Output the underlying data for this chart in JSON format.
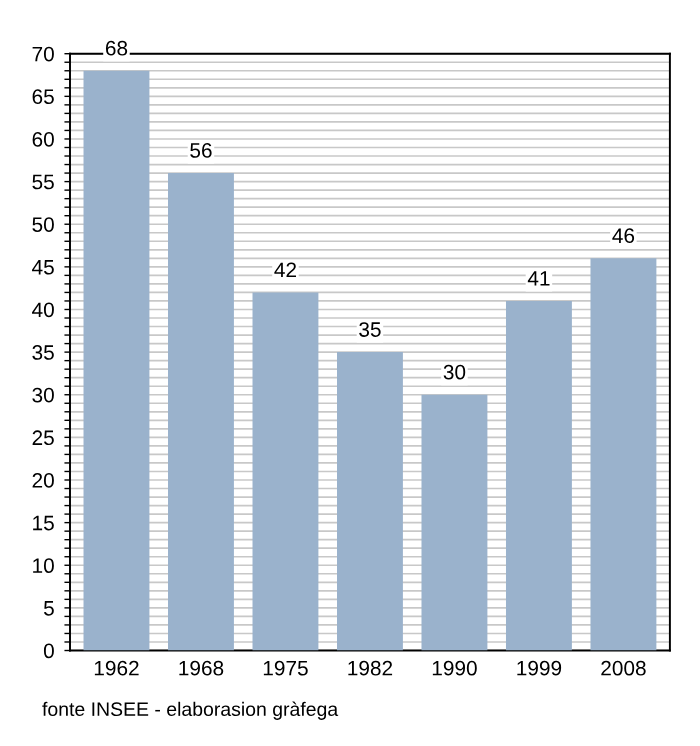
{
  "chart_data": {
    "type": "bar",
    "categories": [
      "1962",
      "1968",
      "1975",
      "1982",
      "1990",
      "1999",
      "2008"
    ],
    "values": [
      68,
      56,
      42,
      35,
      30,
      41,
      46
    ],
    "color": "#9ab2cc",
    "data_labels": true,
    "grid": "y",
    "ylim": [
      0,
      70
    ],
    "yticks": [
      0,
      {
        "value": 1,
        "label": null
      },
      {
        "value": 2,
        "label": null
      },
      {
        "value": 3,
        "label": null
      },
      {
        "value": 4,
        "label": null
      },
      5,
      {
        "value": 6,
        "label": null
      },
      {
        "value": 7,
        "label": null
      },
      {
        "value": 8,
        "label": null
      },
      {
        "value": 9,
        "label": null
      },
      10,
      {
        "value": 11,
        "label": null
      },
      {
        "value": 12,
        "label": null
      },
      {
        "value": 13,
        "label": null
      },
      {
        "value": 14,
        "label": null
      },
      15,
      {
        "value": 16,
        "label": null
      },
      {
        "value": 17,
        "label": null
      },
      {
        "value": 18,
        "label": null
      },
      {
        "value": 19,
        "label": null
      },
      20,
      {
        "value": 21,
        "label": null
      },
      {
        "value": 22,
        "label": null
      },
      {
        "value": 23,
        "label": null
      },
      {
        "value": 24,
        "label": null
      },
      25,
      {
        "value": 26,
        "label": null
      },
      {
        "value": 27,
        "label": null
      },
      {
        "value": 28,
        "label": null
      },
      {
        "value": 29,
        "label": null
      },
      30,
      {
        "value": 31,
        "label": null
      },
      {
        "value": 32,
        "label": null
      },
      {
        "value": 33,
        "label": null
      },
      {
        "value": 34,
        "label": null
      },
      35,
      {
        "value": 36,
        "label": null
      },
      {
        "value": 37,
        "label": null
      },
      {
        "value": 38,
        "label": null
      },
      {
        "value": 39,
        "label": null
      },
      40,
      {
        "value": 41,
        "label": null
      },
      {
        "value": 42,
        "label": null
      },
      {
        "value": 43,
        "label": null
      },
      {
        "value": 44,
        "label": null
      },
      45,
      {
        "value": 46,
        "label": null
      },
      {
        "value": 47,
        "label": null
      },
      {
        "value": 48,
        "label": null
      },
      {
        "value": 49,
        "label": null
      },
      50,
      {
        "value": 51,
        "label": null
      },
      {
        "value": 52,
        "label": null
      },
      {
        "value": 53,
        "label": null
      },
      {
        "value": 54,
        "label": null
      },
      55,
      {
        "value": 56,
        "label": null
      },
      {
        "value": 57,
        "label": null
      },
      {
        "value": 58,
        "label": null
      },
      {
        "value": 59,
        "label": null
      },
      60,
      {
        "value": 61,
        "label": null
      },
      {
        "value": 62,
        "label": null
      },
      {
        "value": 63,
        "label": null
      },
      {
        "value": 64,
        "label": null
      },
      65,
      {
        "value": 66,
        "label": null
      },
      {
        "value": 67,
        "label": null
      },
      {
        "value": 68,
        "label": null
      },
      {
        "value": 69,
        "label": null
      },
      70
    ],
    "annotations": [
      "fonte INSEE - elaborasion gràfega"
    ]
  }
}
